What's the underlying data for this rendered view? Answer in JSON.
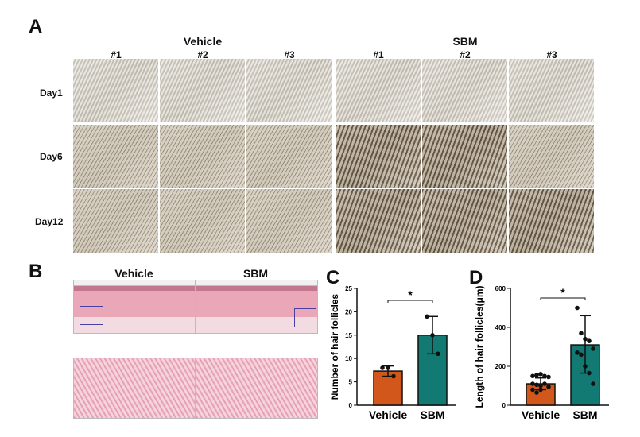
{
  "panel_a": {
    "label": "A",
    "groups": [
      "Vehicle",
      "SBM"
    ],
    "columns": [
      "#1",
      "#2",
      "#3"
    ],
    "rows": [
      "Day1",
      "Day6",
      "Day12"
    ]
  },
  "panel_b": {
    "label": "B",
    "groups": [
      "Vehicle",
      "SBM"
    ]
  },
  "colors": {
    "vehicle": "#d2571b",
    "sbm": "#127a72"
  },
  "chart_data": [
    {
      "panel": "C",
      "type": "bar",
      "categories": [
        "Vehicle",
        "SBM"
      ],
      "values": [
        7.3,
        15
      ],
      "error": [
        [
          6.2,
          8.4
        ],
        [
          11,
          19
        ]
      ],
      "points": [
        [
          8,
          8,
          6.2
        ],
        [
          19,
          15,
          11
        ]
      ],
      "ylabel": "Number of hair follicles",
      "ylim": [
        0,
        25
      ],
      "yticks": [
        "0",
        "5",
        "10",
        "15",
        "20",
        "25"
      ],
      "significance": "*"
    },
    {
      "panel": "D",
      "type": "bar",
      "categories": [
        "Vehicle",
        "SBM"
      ],
      "values": [
        110,
        310
      ],
      "error": [
        [
          80,
          140
        ],
        [
          165,
          460
        ]
      ],
      "points": [
        [
          150,
          155,
          160,
          150,
          145,
          110,
          105,
          100,
          110,
          95,
          80,
          65,
          80
        ],
        [
          500,
          370,
          340,
          330,
          290,
          270,
          260,
          200,
          165,
          110
        ]
      ],
      "ylabel": "Length of hair follicles(μm)",
      "ylim": [
        0,
        600
      ],
      "yticks": [
        "0",
        "200",
        "400",
        "600"
      ],
      "significance": "*"
    }
  ]
}
